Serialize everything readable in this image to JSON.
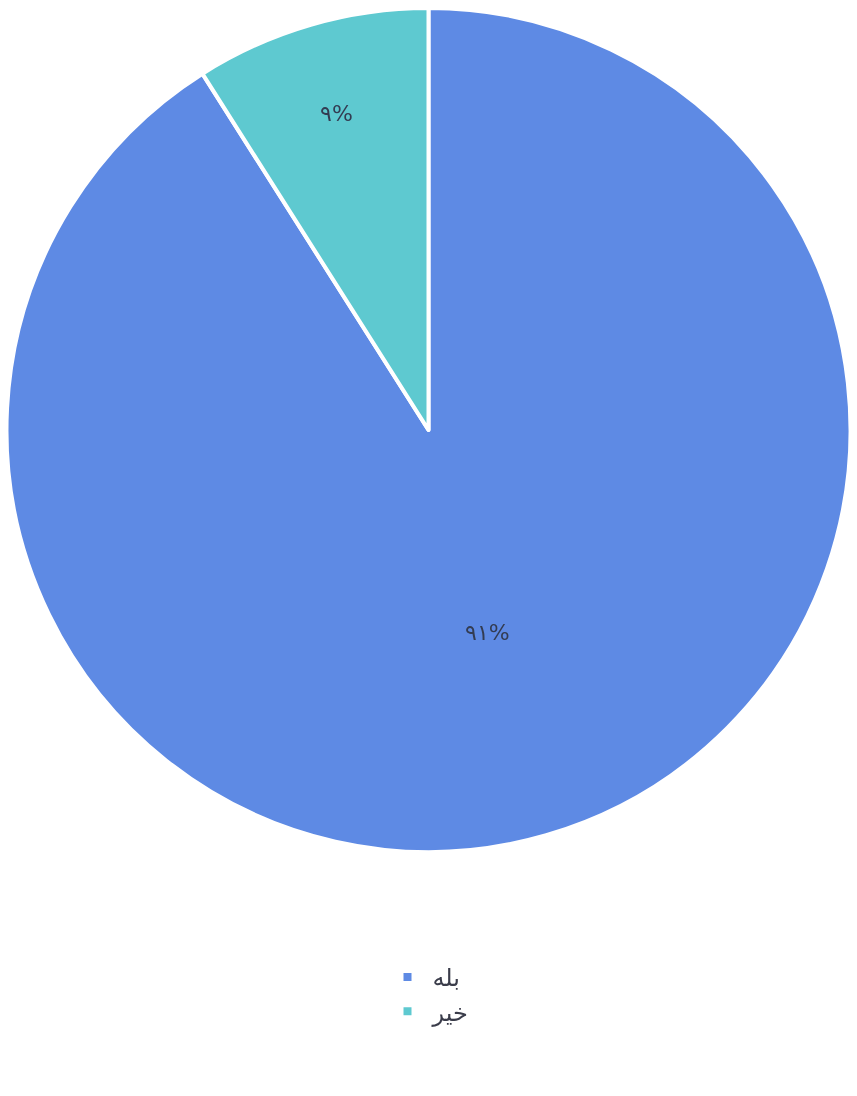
{
  "chart_data": {
    "type": "pie",
    "categories": [
      "بله",
      "خیر"
    ],
    "values": [
      91,
      9
    ],
    "colors": [
      "#5e8ae4",
      "#5ec9d0"
    ],
    "value_labels": [
      "۹۱%",
      "۹%"
    ],
    "legend": "bottom"
  }
}
